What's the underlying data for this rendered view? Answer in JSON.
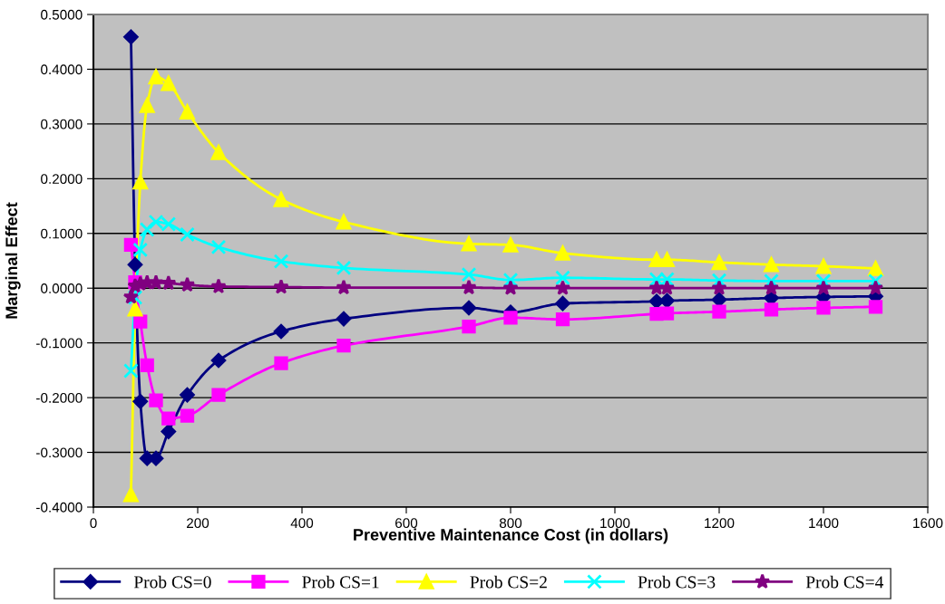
{
  "chart_data": {
    "type": "line",
    "xlabel": "Preventive Maintenance Cost (in dollars)",
    "ylabel": "Marginal Effect",
    "x": [
      72,
      80,
      90,
      103,
      120,
      144,
      180,
      240,
      360,
      480,
      720,
      800,
      900,
      1080,
      1100,
      1200,
      1300,
      1400,
      1500
    ],
    "xlim": [
      0,
      1600
    ],
    "xticks": [
      0,
      200,
      400,
      600,
      800,
      1000,
      1200,
      1400,
      1600
    ],
    "ylim": [
      -0.4,
      0.5
    ],
    "yticks": [
      {
        "value": -0.4,
        "label": "-0.4000"
      },
      {
        "value": -0.3,
        "label": "-0.3000"
      },
      {
        "value": -0.2,
        "label": "-0.2000"
      },
      {
        "value": -0.1,
        "label": "-0.1000"
      },
      {
        "value": 0,
        "label": "0.0000"
      },
      {
        "value": 0.1,
        "label": "0.1000"
      },
      {
        "value": 0.2,
        "label": "0.2000"
      },
      {
        "value": 0.3,
        "label": "0.3000"
      },
      {
        "value": 0.4,
        "label": "0.4000"
      },
      {
        "value": 0.5,
        "label": "0.5000"
      }
    ],
    "grid": "y",
    "legend": "bottom",
    "series": [
      {
        "name": "Prob CS=0",
        "color": "#000080",
        "marker": "diamond",
        "values": [
          0.459,
          0.043,
          -0.207,
          -0.311,
          -0.311,
          -0.262,
          -0.195,
          -0.132,
          -0.079,
          -0.056,
          -0.036,
          -0.044,
          -0.028,
          -0.024,
          -0.023,
          -0.021,
          -0.018,
          -0.016,
          -0.015
        ]
      },
      {
        "name": "Prob CS=1",
        "color": "#ff00ff",
        "marker": "square",
        "values": [
          0.079,
          0.011,
          -0.061,
          -0.141,
          -0.205,
          -0.238,
          -0.233,
          -0.195,
          -0.137,
          -0.105,
          -0.07,
          -0.054,
          -0.057,
          -0.047,
          -0.046,
          -0.043,
          -0.039,
          -0.036,
          -0.034
        ]
      },
      {
        "name": "Prob CS=2",
        "color": "#ffff00",
        "marker": "triangle",
        "values": [
          -0.377,
          -0.038,
          0.194,
          0.334,
          0.386,
          0.374,
          0.322,
          0.248,
          0.162,
          0.121,
          0.081,
          0.079,
          0.064,
          0.052,
          0.052,
          0.047,
          0.043,
          0.04,
          0.036
        ]
      },
      {
        "name": "Prob CS=3",
        "color": "#00ffff",
        "marker": "cross",
        "values": [
          -0.151,
          -0.017,
          0.07,
          0.107,
          0.121,
          0.117,
          0.098,
          0.075,
          0.049,
          0.037,
          0.025,
          0.015,
          0.019,
          0.016,
          0.016,
          0.014,
          0.013,
          0.013,
          0.013
        ]
      },
      {
        "name": "Prob CS=4",
        "color": "#800080",
        "marker": "star",
        "values": [
          -0.016,
          0.004,
          0.008,
          0.01,
          0.01,
          0.009,
          0.006,
          0.003,
          0.002,
          0.001,
          0.001,
          0.0,
          0.0,
          0.0,
          0.0,
          0.0,
          0.0,
          0.0,
          0.0
        ]
      }
    ]
  }
}
